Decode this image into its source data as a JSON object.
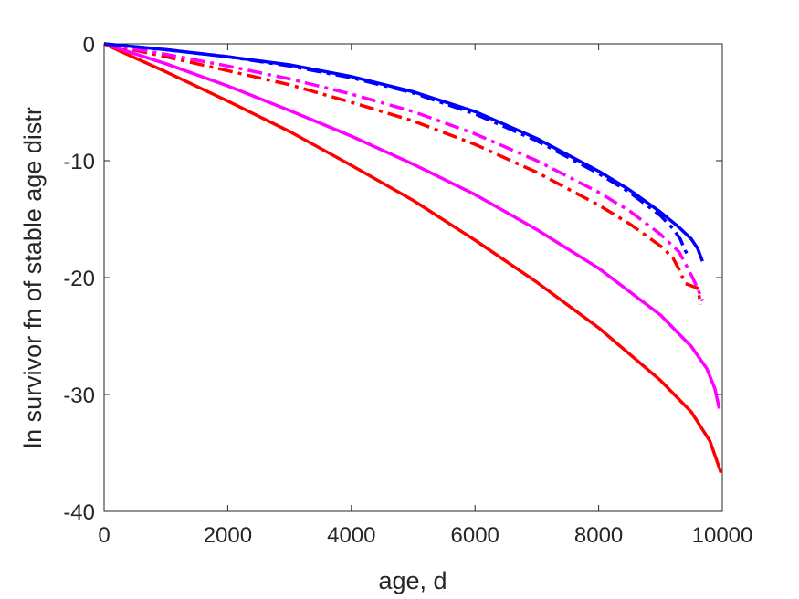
{
  "chart_data": {
    "type": "line",
    "title": "",
    "xlabel": "age, d",
    "ylabel": "ln survivor fn of stable age distr",
    "xlim": [
      0,
      10000
    ],
    "ylim": [
      -40,
      0
    ],
    "xticks": [
      0,
      2000,
      4000,
      6000,
      8000,
      10000
    ],
    "yticks": [
      0,
      -10,
      -20,
      -30,
      -40
    ],
    "xtick_labels": [
      "0",
      "2000",
      "4000",
      "6000",
      "8000",
      "10000"
    ],
    "ytick_labels": [
      "0",
      "-10",
      "-20",
      "-30",
      "-40"
    ],
    "grid": false,
    "legend": "none",
    "series": [
      {
        "color": "#ff0000",
        "style": "solid",
        "x": [
          0,
          1000,
          2000,
          3000,
          4000,
          5000,
          6000,
          7000,
          8000,
          9000,
          9500,
          9800,
          9980
        ],
        "y": [
          0,
          -2.4,
          -4.9,
          -7.5,
          -10.4,
          -13.4,
          -16.8,
          -20.4,
          -24.3,
          -28.8,
          -31.5,
          -34.0,
          -36.7
        ]
      },
      {
        "color": "#ff00ff",
        "style": "solid",
        "x": [
          0,
          1000,
          2000,
          3000,
          4000,
          5000,
          6000,
          7000,
          8000,
          9000,
          9500,
          9750,
          9880,
          9950
        ],
        "y": [
          0,
          -1.7,
          -3.6,
          -5.7,
          -7.9,
          -10.3,
          -12.9,
          -15.9,
          -19.2,
          -23.2,
          -25.9,
          -27.8,
          -29.5,
          -31.2
        ]
      },
      {
        "color": "#ff0000",
        "style": "dashdot",
        "x": [
          0,
          1000,
          2000,
          3000,
          4000,
          5000,
          6000,
          7000,
          8000,
          8500,
          9000,
          9200,
          9300,
          9400,
          9500,
          9600,
          9650
        ],
        "y": [
          0,
          -1.1,
          -2.3,
          -3.5,
          -5.0,
          -6.6,
          -8.6,
          -11.0,
          -13.8,
          -15.4,
          -17.3,
          -18.3,
          -19.3,
          -20.5,
          -20.7,
          -20.9,
          -22.3
        ]
      },
      {
        "color": "#ff00ff",
        "style": "dashdot",
        "x": [
          0,
          1000,
          2000,
          3000,
          4000,
          5000,
          6000,
          7000,
          8000,
          8500,
          9000,
          9300,
          9400,
          9500,
          9600,
          9680
        ],
        "y": [
          0,
          -0.9,
          -1.9,
          -3.0,
          -4.3,
          -5.8,
          -7.7,
          -10.0,
          -12.7,
          -14.3,
          -16.3,
          -17.8,
          -18.8,
          -19.8,
          -20.9,
          -22.0
        ]
      },
      {
        "color": "#0000ff",
        "style": "dashdot",
        "x": [
          0,
          1000,
          2000,
          3000,
          4000,
          5000,
          6000,
          7000,
          8000,
          8500,
          9000,
          9200,
          9320,
          9400,
          9460
        ],
        "y": [
          0,
          -0.5,
          -1.1,
          -1.9,
          -2.9,
          -4.2,
          -6.0,
          -8.3,
          -11.1,
          -12.7,
          -14.7,
          -15.8,
          -16.7,
          -17.7,
          -18.2
        ]
      },
      {
        "color": "#0000ff",
        "style": "solid",
        "x": [
          0,
          1000,
          2000,
          3000,
          4000,
          5000,
          6000,
          7000,
          8000,
          8500,
          9000,
          9300,
          9500,
          9600,
          9680
        ],
        "y": [
          0,
          -0.5,
          -1.1,
          -1.8,
          -2.8,
          -4.1,
          -5.8,
          -8.1,
          -10.9,
          -12.5,
          -14.4,
          -15.7,
          -16.7,
          -17.5,
          -18.6
        ]
      }
    ]
  }
}
